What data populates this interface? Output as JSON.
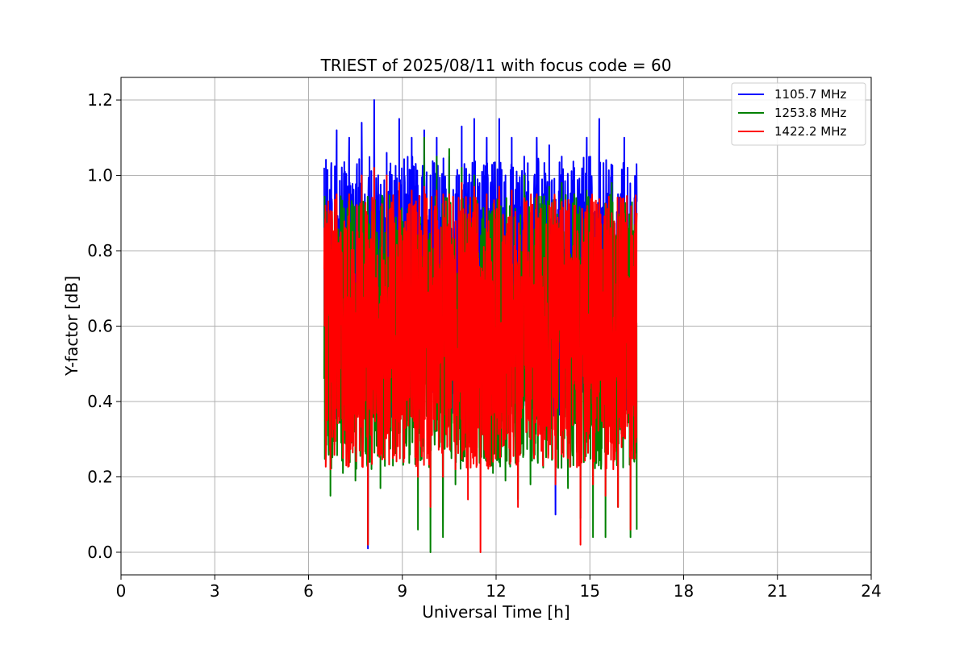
{
  "chart_data": {
    "type": "line",
    "title": "TRIEST of 2025/08/11 with focus code = 60",
    "xlabel": "Universal Time [h]",
    "ylabel": "Y-factor [dB]",
    "xlim": [
      0,
      24
    ],
    "ylim": [
      -0.06,
      1.26
    ],
    "xticks": [
      0,
      3,
      6,
      9,
      12,
      15,
      18,
      21,
      24
    ],
    "yticks": [
      0.0,
      0.2,
      0.4,
      0.6,
      0.8,
      1.0,
      1.2
    ],
    "ytick_labels": [
      "0.0",
      "0.2",
      "0.4",
      "0.6",
      "0.8",
      "1.0",
      "1.2"
    ],
    "grid": true,
    "legend_position": "top-right",
    "x_range": [
      6.5,
      16.5
    ],
    "series": [
      {
        "name": "1105.7 MHz",
        "color": "#0000ff",
        "x": [
          6.5,
          6.7,
          6.9,
          7.1,
          7.3,
          7.5,
          7.7,
          7.9,
          8.1,
          8.3,
          8.5,
          8.7,
          8.9,
          9.1,
          9.3,
          9.5,
          9.7,
          9.9,
          10.1,
          10.3,
          10.5,
          10.7,
          10.9,
          11.1,
          11.3,
          11.5,
          11.7,
          11.9,
          12.1,
          12.3,
          12.5,
          12.7,
          12.9,
          13.1,
          13.3,
          13.5,
          13.7,
          13.9,
          14.1,
          14.3,
          14.5,
          14.7,
          14.9,
          15.1,
          15.3,
          15.5,
          15.7,
          15.9,
          16.1,
          16.3,
          16.5
        ],
        "y": [
          1.02,
          0.55,
          1.12,
          0.48,
          1.1,
          0.62,
          1.14,
          0.01,
          1.2,
          0.7,
          1.06,
          0.92,
          1.15,
          0.95,
          1.1,
          0.85,
          1.12,
          1.0,
          1.1,
          0.9,
          1.05,
          0.95,
          1.13,
          0.98,
          1.15,
          0.85,
          1.1,
          0.95,
          1.15,
          1.0,
          1.1,
          0.98,
          1.05,
          0.9,
          1.1,
          0.95,
          1.08,
          0.1,
          1.05,
          0.92,
          1.02,
          0.95,
          1.1,
          0.9,
          1.15,
          0.88,
          1.02,
          0.95,
          1.1,
          0.82,
          0.93
        ]
      },
      {
        "name": "1253.8 MHz",
        "color": "#008000",
        "x": [
          6.5,
          6.7,
          6.9,
          7.1,
          7.3,
          7.5,
          7.7,
          7.9,
          8.1,
          8.3,
          8.5,
          8.7,
          8.9,
          9.1,
          9.3,
          9.5,
          9.7,
          9.9,
          10.1,
          10.3,
          10.5,
          10.7,
          10.9,
          11.1,
          11.3,
          11.5,
          11.7,
          11.9,
          12.1,
          12.3,
          12.5,
          12.7,
          12.9,
          13.1,
          13.3,
          13.5,
          13.7,
          13.9,
          14.1,
          14.3,
          14.5,
          14.7,
          14.9,
          15.1,
          15.3,
          15.5,
          15.7,
          15.9,
          16.1,
          16.3,
          16.5
        ],
        "y": [
          0.46,
          0.15,
          0.9,
          0.21,
          0.95,
          0.19,
          0.98,
          0.02,
          0.9,
          0.17,
          0.95,
          0.23,
          0.97,
          0.29,
          0.9,
          0.06,
          1.1,
          0.0,
          1.05,
          0.04,
          1.07,
          0.18,
          1.02,
          0.22,
          1.0,
          0.27,
          0.95,
          0.21,
          0.96,
          0.19,
          0.9,
          0.14,
          1.0,
          0.18,
          0.95,
          0.25,
          0.97,
          0.2,
          0.98,
          0.17,
          0.95,
          0.09,
          0.96,
          0.04,
          0.9,
          0.04,
          0.98,
          0.12,
          0.9,
          0.04,
          0.06
        ]
      },
      {
        "name": "1422.2 MHz",
        "color": "#ff0000",
        "x": [
          6.5,
          6.7,
          6.9,
          7.1,
          7.3,
          7.5,
          7.7,
          7.9,
          8.1,
          8.3,
          8.5,
          8.7,
          8.9,
          9.1,
          9.3,
          9.5,
          9.7,
          9.9,
          10.1,
          10.3,
          10.5,
          10.7,
          10.9,
          11.1,
          11.3,
          11.5,
          11.7,
          11.9,
          12.1,
          12.3,
          12.5,
          12.7,
          12.9,
          13.1,
          13.3,
          13.5,
          13.7,
          13.9,
          14.1,
          14.3,
          14.5,
          14.7,
          14.9,
          15.1,
          15.3,
          15.5,
          15.7,
          15.9,
          16.1,
          16.3,
          16.5
        ],
        "y": [
          0.75,
          0.22,
          0.95,
          0.25,
          0.95,
          0.28,
          1.0,
          0.02,
          1.02,
          0.3,
          1.0,
          0.25,
          0.98,
          0.33,
          0.96,
          0.2,
          0.97,
          0.12,
          0.96,
          0.2,
          0.95,
          0.22,
          0.98,
          0.14,
          0.97,
          0.0,
          0.95,
          0.24,
          0.97,
          0.3,
          0.96,
          0.12,
          0.94,
          0.3,
          0.95,
          0.23,
          0.92,
          0.18,
          0.93,
          0.25,
          0.92,
          0.02,
          0.91,
          0.18,
          0.9,
          0.15,
          0.9,
          0.12,
          0.88,
          0.06,
          0.9
        ]
      }
    ]
  }
}
